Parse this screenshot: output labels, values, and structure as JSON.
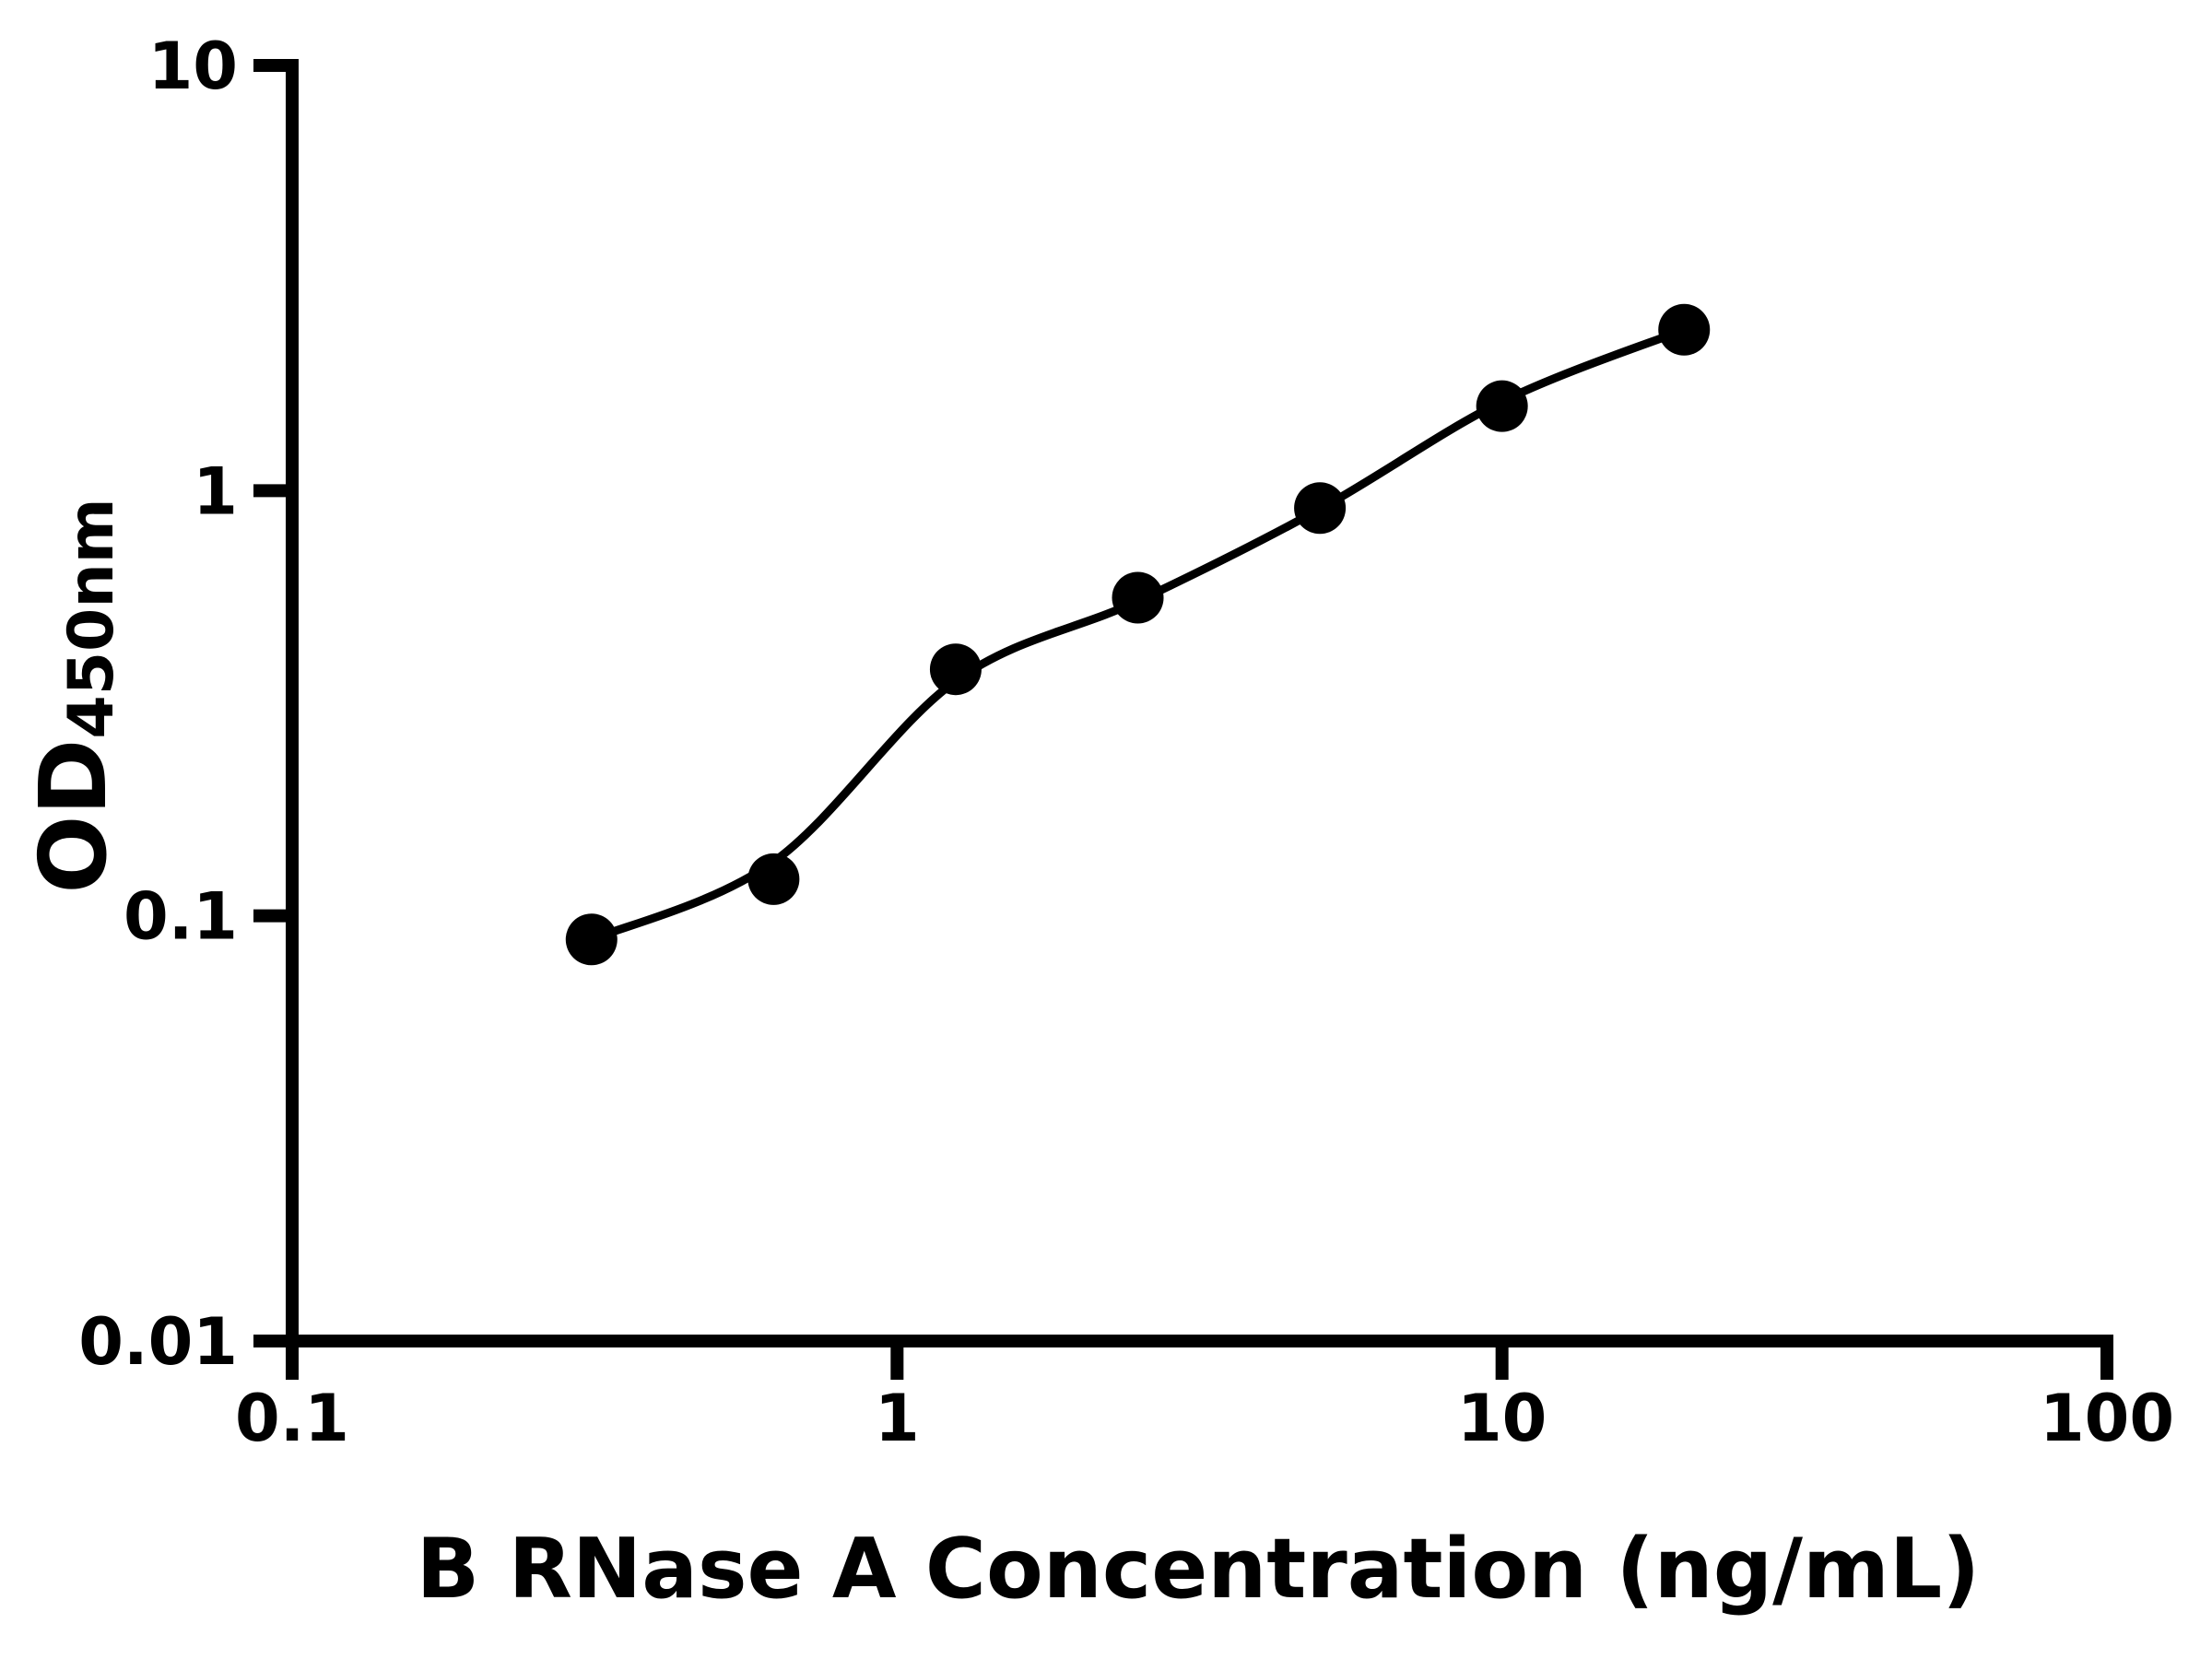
{
  "page": {
    "background": "#ffffff"
  },
  "chart_data": {
    "type": "scatter",
    "subtype": "scatter-with-fit-curve",
    "title": "",
    "xlabel": "B RNase A Concentration (ng/mL)",
    "ylabel_base": "OD",
    "ylabel_sub": "450nm",
    "xscale": "log",
    "yscale": "log",
    "xlim": [
      0.1,
      100
    ],
    "ylim": [
      0.01,
      10
    ],
    "grid": "off",
    "legend": "none",
    "x_ticks": [
      {
        "value": 0.1,
        "label": "0.1"
      },
      {
        "value": 1,
        "label": "1"
      },
      {
        "value": 10,
        "label": "10"
      },
      {
        "value": 100,
        "label": "100"
      }
    ],
    "y_ticks": [
      {
        "value": 10,
        "label": "10"
      },
      {
        "value": 1,
        "label": "1"
      },
      {
        "value": 0.1,
        "label": "0.1"
      },
      {
        "value": 0.01,
        "label": "0.01"
      }
    ],
    "series": [
      {
        "name": "B RNase A standard curve points",
        "marker": "filled-circle",
        "x": [
          0.3125,
          0.625,
          1.25,
          2.5,
          5,
          10,
          20
        ],
        "y": [
          0.088,
          0.122,
          0.38,
          0.56,
          0.91,
          1.58,
          2.39
        ]
      }
    ],
    "fit_curve": {
      "name": "fitted standard curve",
      "x": [
        0.3125,
        0.625,
        1.25,
        2.5,
        5,
        10,
        20
      ],
      "y": [
        0.088,
        0.134,
        0.357,
        0.55,
        0.905,
        1.62,
        2.39
      ]
    },
    "colors": {
      "data": "#000000",
      "axis": "#000000",
      "background": "#ffffff"
    }
  }
}
